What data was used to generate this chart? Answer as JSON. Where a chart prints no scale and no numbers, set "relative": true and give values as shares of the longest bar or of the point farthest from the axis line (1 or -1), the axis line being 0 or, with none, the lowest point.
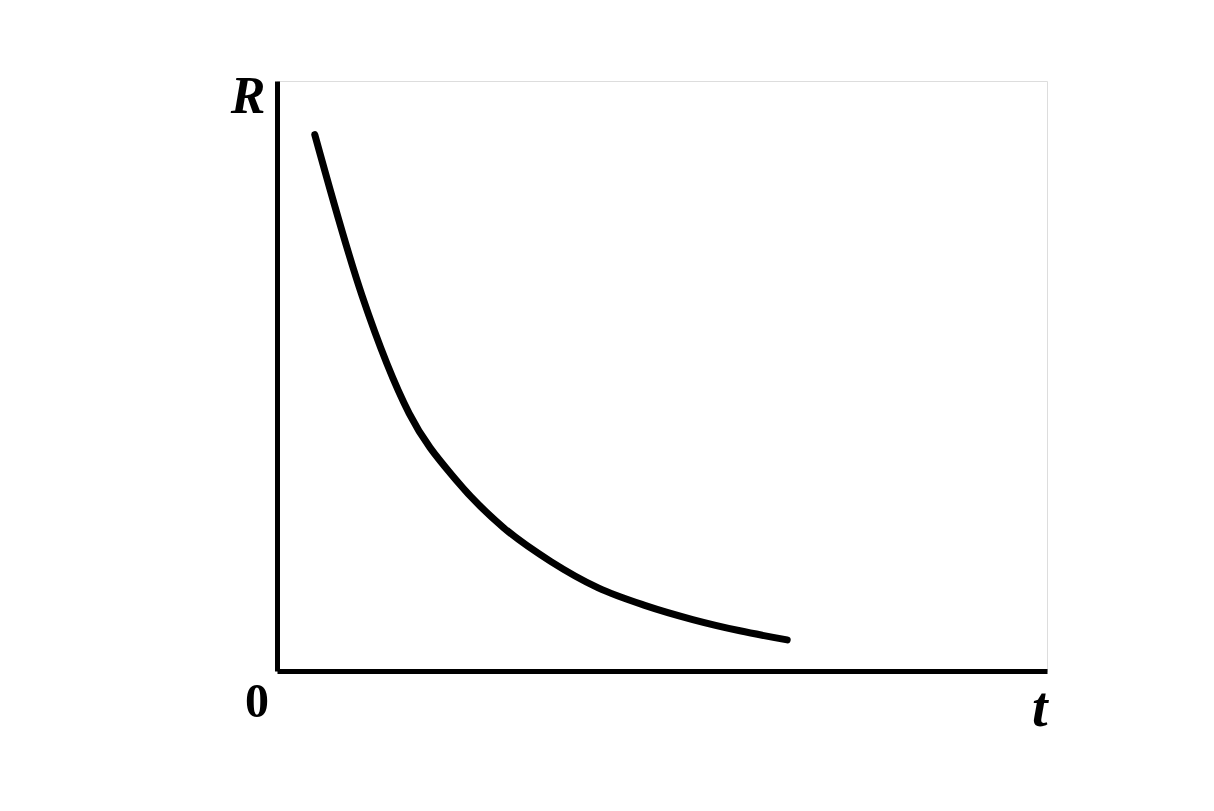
{
  "chart_data": {
    "type": "line",
    "relative": true,
    "xlabel": "t",
    "ylabel": "R",
    "annotations": [
      "0"
    ],
    "categories": [
      null,
      null,
      null,
      null,
      null,
      null,
      null,
      null,
      null,
      null,
      null
    ],
    "series": [
      {
        "color": "#000000",
        "values": [
          1.0,
          0.7,
          0.48,
          0.355,
          0.267,
          0.204,
          0.155,
          0.122,
          0.096,
          0.075,
          0.058
        ]
      }
    ]
  }
}
